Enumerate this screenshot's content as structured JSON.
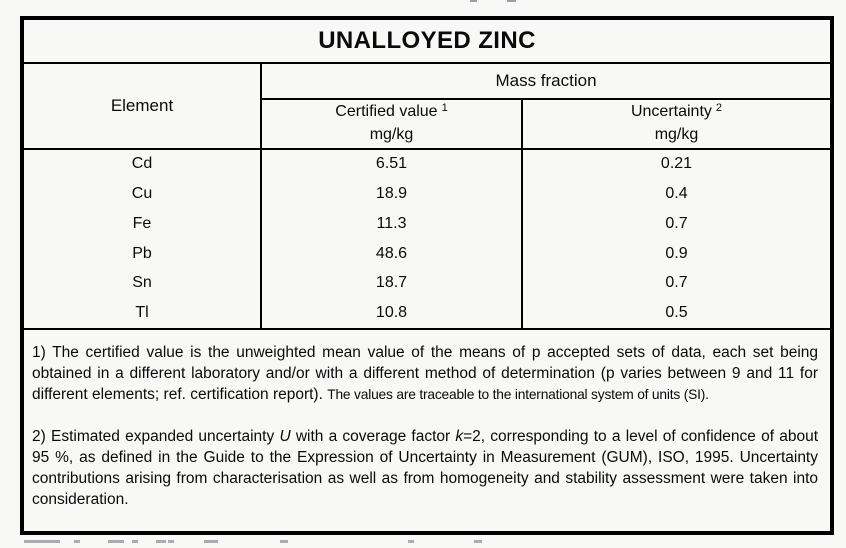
{
  "table": {
    "title": "UNALLOYED ZINC",
    "header": {
      "element_label": "Element",
      "mass_fraction_label": "Mass fraction",
      "certified": {
        "label": "Certified value",
        "sup": "1",
        "unit": "mg/kg"
      },
      "uncertainty": {
        "label": "Uncertainty",
        "sup": "2",
        "unit": "mg/kg"
      }
    },
    "rows": [
      {
        "element": "Cd",
        "certified_value": "6.51",
        "uncertainty": "0.21"
      },
      {
        "element": "Cu",
        "certified_value": "18.9",
        "uncertainty": "0.4"
      },
      {
        "element": "Fe",
        "certified_value": "11.3",
        "uncertainty": "0.7"
      },
      {
        "element": "Pb",
        "certified_value": "48.6",
        "uncertainty": "0.9"
      },
      {
        "element": "Sn",
        "certified_value": "18.7",
        "uncertainty": "0.7"
      },
      {
        "element": "Tl",
        "certified_value": "10.8",
        "uncertainty": "0.5"
      }
    ],
    "footnotes": {
      "note1": {
        "main": "1) The certified value is the unweighted mean value of the means of p accepted sets of data, each set being obtained in a different laboratory and/or with a different method of determination (p varies between 9 and 11 for different elements; ref. certification report). ",
        "tail_condensed": "The values are traceable to the international system of units (SI)."
      },
      "note2": {
        "pre": "2) Estimated expanded uncertainty ",
        "var_u": "U",
        "mid": " with a coverage factor ",
        "var_k": "k",
        "post": "=2, corresponding to a level of confidence of about 95 %, as defined in the Guide to the Expression of Uncertainty in Measurement (GUM), ISO, 1995. Uncertainty contributions arising from characterisation as well as from homogeneity and stability assessment were taken into consideration."
      }
    }
  },
  "colors": {
    "background": "#f8f8f7",
    "border": "#000000",
    "text": "#0a0a0a"
  }
}
